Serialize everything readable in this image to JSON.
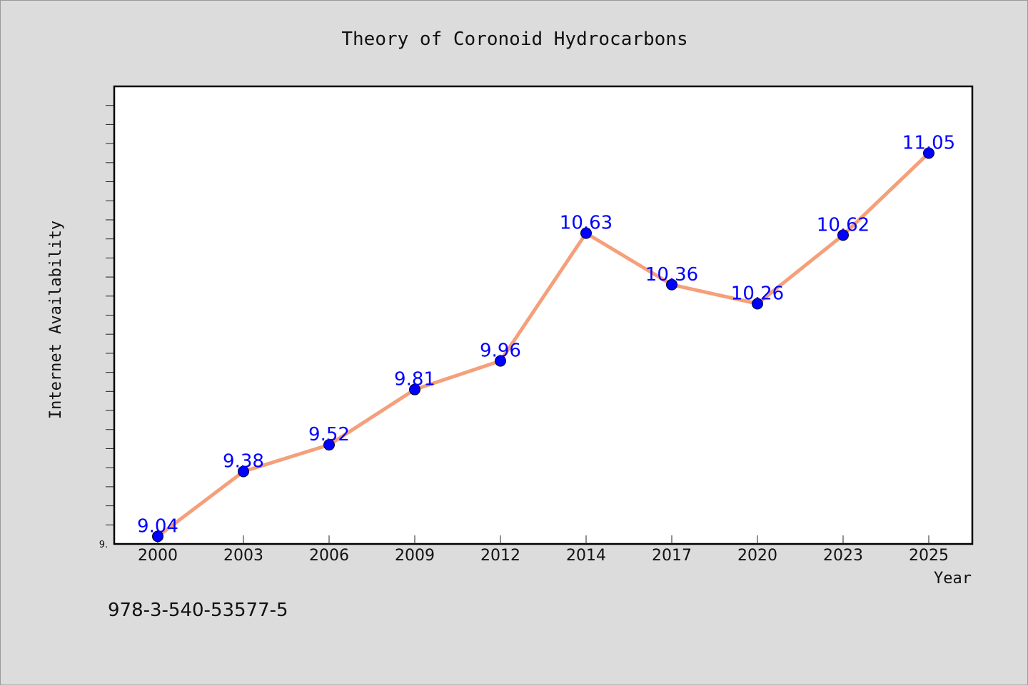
{
  "chart_data": {
    "type": "line",
    "title": "Theory of Coronoid Hydrocarbons",
    "xlabel": "Year",
    "ylabel": "Internet Availability",
    "categories": [
      "2000",
      "2003",
      "2006",
      "2009",
      "2012",
      "2014",
      "2017",
      "2020",
      "2023",
      "2025"
    ],
    "series": [
      {
        "values": [
          9.04,
          9.38,
          9.52,
          9.81,
          9.96,
          10.63,
          10.36,
          10.26,
          10.62,
          11.05
        ],
        "labels": [
          "9.04",
          "9.38",
          "9.52",
          "9.81",
          "9.96",
          "10.63",
          "10.36",
          "10.26",
          "10.62",
          "11.05"
        ]
      }
    ],
    "y_tick_label": "9.",
    "ylim": [
      9.0,
      11.4
    ],
    "grid": false,
    "colors": {
      "line": "#f4a07a",
      "marker": "#0000ff",
      "data_label": "#0000ff"
    }
  },
  "footer": {
    "isbn": "978-3-540-53577-5"
  }
}
